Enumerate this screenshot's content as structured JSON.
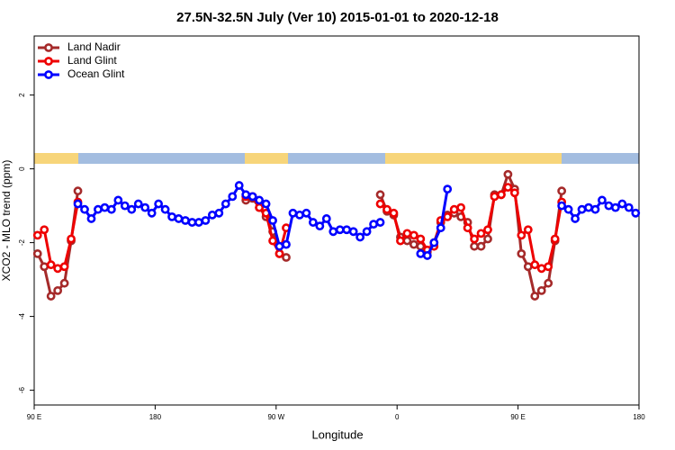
{
  "chart_data": {
    "type": "line",
    "title": "27.5N-32.5N July (Ver 10)   2015-01-01 to 2020-12-18",
    "x_label": "Longitude",
    "y_label": "XCO2 - MLO trend (ppm)",
    "xlim": [
      90,
      540
    ],
    "ylim": [
      -6.4,
      3.6
    ],
    "xticks": [
      {
        "value": 90,
        "label": "90 E"
      },
      180,
      {
        "value": 270,
        "label": "90 W"
      },
      {
        "value": 360,
        "label": "0"
      },
      {
        "value": 450,
        "label": "90 E"
      },
      {
        "value": 540,
        "label": "180"
      }
    ],
    "yticks": [
      -6,
      -4,
      -2,
      0,
      2
    ],
    "legend": "top-left",
    "x": [
      92.5,
      97.5,
      102.5,
      107.5,
      112.5,
      117.5,
      122.5,
      127.5,
      132.5,
      137.5,
      142.5,
      147.5,
      152.5,
      157.5,
      162.5,
      167.5,
      172.5,
      177.5,
      182.5,
      187.5,
      192.5,
      197.5,
      202.5,
      207.5,
      212.5,
      217.5,
      222.5,
      227.5,
      232.5,
      237.5,
      242.5,
      247.5,
      252.5,
      257.5,
      262.5,
      267.5,
      272.5,
      277.5,
      282.5,
      287.5,
      292.5,
      297.5,
      302.5,
      307.5,
      312.5,
      317.5,
      322.5,
      327.5,
      332.5,
      337.5,
      342.5,
      347.5,
      352.5,
      357.5,
      362.5,
      367.5,
      372.5,
      377.5,
      382.5,
      387.5,
      392.5,
      397.5,
      402.5,
      407.5,
      412.5,
      417.5,
      422.5,
      427.5,
      432.5,
      437.5,
      442.5,
      447.5,
      452.5,
      457.5,
      462.5,
      467.5,
      472.5,
      477.5,
      482.5,
      487.5,
      492.5,
      497.5,
      502.5,
      507.5,
      512.5,
      517.5,
      522.5,
      527.5,
      532.5,
      537.5
    ],
    "series": [
      {
        "name": "Land Nadir",
        "color": "#a52a2a",
        "values": [
          -2.3,
          -2.65,
          -3.45,
          -3.3,
          -3.1,
          -1.95,
          -0.6,
          null,
          null,
          null,
          null,
          null,
          null,
          null,
          null,
          null,
          null,
          null,
          null,
          null,
          null,
          null,
          null,
          null,
          null,
          null,
          null,
          null,
          null,
          null,
          null,
          -0.85,
          -0.8,
          -1.05,
          -1.3,
          -1.7,
          -2.3,
          -2.4,
          null,
          null,
          null,
          null,
          null,
          null,
          null,
          null,
          null,
          null,
          null,
          null,
          null,
          -0.7,
          -1.15,
          -1.25,
          -1.85,
          -1.95,
          -2.05,
          -2.1,
          -2.25,
          -2.0,
          -1.45,
          -1.25,
          -1.2,
          -1.3,
          -1.45,
          -2.1,
          -2.1,
          -1.9,
          -0.7,
          -0.7,
          -0.15,
          -0.55,
          -2.3,
          -2.65,
          -3.45,
          -3.3,
          -3.1,
          -1.95,
          -0.6,
          null,
          null,
          null,
          null,
          null,
          null,
          null,
          null,
          null,
          null,
          null
        ]
      },
      {
        "name": "Land Glint",
        "color": "#ee0000",
        "values": [
          -1.8,
          -1.65,
          -2.6,
          -2.7,
          -2.65,
          -1.9,
          -0.9,
          null,
          null,
          null,
          null,
          null,
          null,
          null,
          null,
          null,
          null,
          null,
          null,
          null,
          null,
          null,
          null,
          null,
          null,
          null,
          null,
          null,
          null,
          null,
          null,
          -0.75,
          -0.75,
          -1.05,
          -1.2,
          -1.95,
          -2.3,
          -1.6,
          null,
          null,
          null,
          null,
          null,
          null,
          null,
          null,
          null,
          null,
          null,
          null,
          null,
          -0.95,
          -1.1,
          -1.2,
          -1.95,
          -1.75,
          -1.8,
          -1.9,
          -2.2,
          -2.1,
          -1.4,
          -1.3,
          -1.1,
          -1.05,
          -1.6,
          -1.9,
          -1.75,
          -1.65,
          -0.75,
          -0.7,
          -0.5,
          -0.65,
          -1.8,
          -1.65,
          -2.6,
          -2.7,
          -2.65,
          -1.9,
          -0.9,
          null,
          null,
          null,
          null,
          null,
          null,
          null,
          null,
          null,
          null,
          null
        ]
      },
      {
        "name": "Ocean Glint",
        "color": "#0000ff",
        "values": [
          null,
          null,
          null,
          null,
          null,
          null,
          -0.95,
          -1.1,
          -1.35,
          -1.1,
          -1.05,
          -1.1,
          -0.85,
          -1.0,
          -1.1,
          -0.95,
          -1.05,
          -1.2,
          -0.95,
          -1.1,
          -1.3,
          -1.35,
          -1.4,
          -1.45,
          -1.45,
          -1.4,
          -1.25,
          -1.2,
          -0.95,
          -0.75,
          -0.45,
          -0.7,
          -0.75,
          -0.85,
          -0.95,
          -1.4,
          -2.1,
          -2.05,
          -1.2,
          -1.25,
          -1.2,
          -1.45,
          -1.55,
          -1.35,
          -1.7,
          -1.65,
          -1.65,
          -1.7,
          -1.85,
          -1.7,
          -1.5,
          -1.45,
          null,
          null,
          null,
          null,
          null,
          -2.3,
          -2.35,
          -2.0,
          -1.6,
          -0.55,
          null,
          null,
          null,
          null,
          null,
          null,
          null,
          null,
          null,
          null,
          null,
          null,
          null,
          null,
          null,
          null,
          -1.0,
          -1.1,
          -1.35,
          -1.1,
          -1.05,
          -1.1,
          -0.85,
          -1.0,
          -1.05,
          -0.95,
          -1.05,
          -1.2
        ]
      }
    ]
  }
}
